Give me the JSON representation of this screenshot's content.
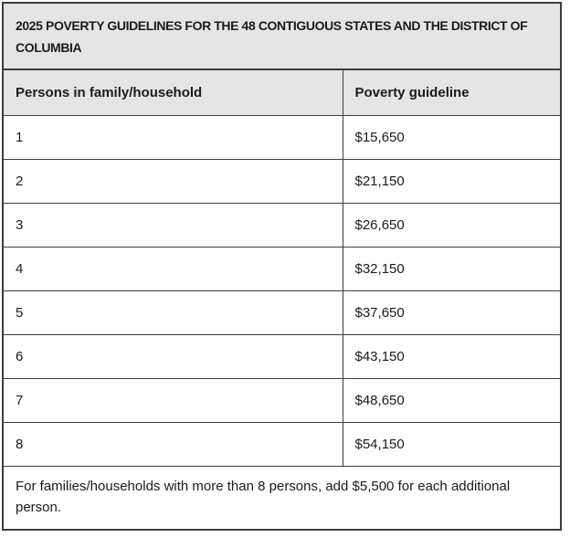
{
  "colors": {
    "text": "#1b1b1b",
    "border": "#3d3d3d",
    "header_bg": "#e5e5e5",
    "row_bg": "#ffffff"
  },
  "chart_data": {
    "type": "table",
    "title": "2025 POVERTY GUIDELINES FOR THE 48 CONTIGUOUS STATES AND THE DISTRICT OF COLUMBIA",
    "columns": [
      "Persons in family/household",
      "Poverty guideline"
    ],
    "rows": [
      [
        "1",
        "$15,650"
      ],
      [
        "2",
        "$21,150"
      ],
      [
        "3",
        "$26,650"
      ],
      [
        "4",
        "$32,150"
      ],
      [
        "5",
        "$37,650"
      ],
      [
        "6",
        "$43,150"
      ],
      [
        "7",
        "$48,650"
      ],
      [
        "8",
        "$54,150"
      ]
    ],
    "persons": [
      1,
      2,
      3,
      4,
      5,
      6,
      7,
      8
    ],
    "guideline_values_usd": [
      15650,
      21150,
      26650,
      32150,
      37650,
      43150,
      48650,
      54150
    ],
    "additional_person_amount_usd": 5500,
    "footnote": "For families/households with more than 8 persons, add $5,500 for each additional person."
  }
}
